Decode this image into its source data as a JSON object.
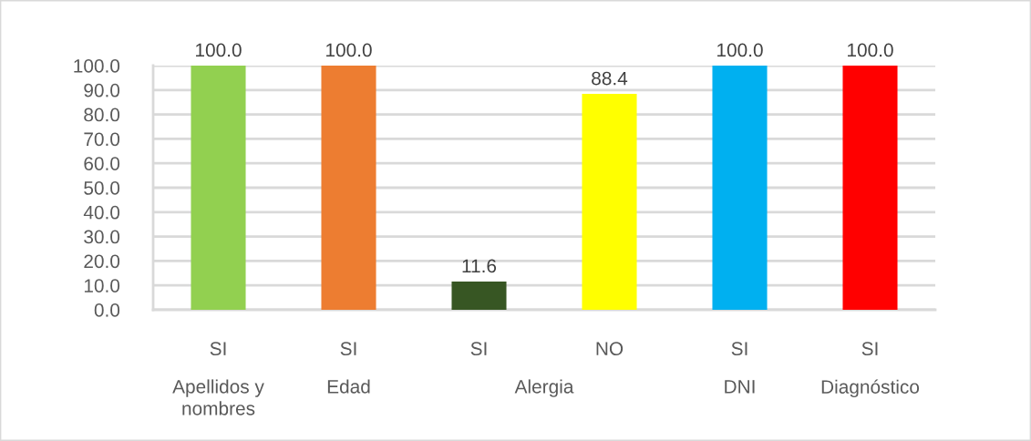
{
  "chart_data": {
    "type": "bar",
    "categories": [
      "SI",
      "SI",
      "SI",
      "NO",
      "SI",
      "SI"
    ],
    "values": [
      100,
      100,
      11.6,
      88.4,
      100,
      100
    ],
    "colors": [
      "#92d050",
      "#ed7d31",
      "#375623",
      "#ffff00",
      "#00b0f0",
      "#ff0000"
    ],
    "value_labels": [
      "100.0",
      "100.0",
      "11.6",
      "88.4",
      "100.0",
      "100.0"
    ],
    "ylim": [
      0,
      100
    ],
    "yticks": [
      {
        "value": 0,
        "label": "0.0"
      },
      {
        "value": 10,
        "label": "10.0"
      },
      {
        "value": 20,
        "label": "20.0"
      },
      {
        "value": 30,
        "label": "30.0"
      },
      {
        "value": 40,
        "label": "40.0"
      },
      {
        "value": 50,
        "label": "50.0"
      },
      {
        "value": 60,
        "label": "60.0"
      },
      {
        "value": 70,
        "label": "70.0"
      },
      {
        "value": 80,
        "label": "80.0"
      },
      {
        "value": 90,
        "label": "90.0"
      },
      {
        "value": 100,
        "label": "100.0"
      }
    ],
    "grid": "y",
    "annotations": [
      "Apellidos y\nnombres",
      "Edad",
      "Alergia",
      "DNI",
      "Diagnóstico"
    ]
  }
}
